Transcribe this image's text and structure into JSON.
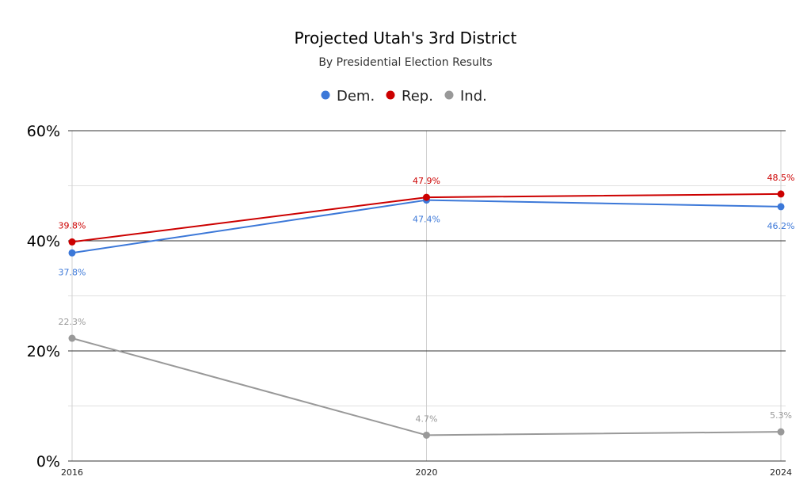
{
  "chart_data": {
    "type": "line",
    "title": "Projected Utah's 3rd District",
    "subtitle": "By Presidential Election Results",
    "xlabel": "",
    "ylabel": "",
    "categories": [
      "2016",
      "2020",
      "2024"
    ],
    "ylim": [
      0,
      60
    ],
    "y_ticks": [
      0,
      20,
      40,
      60
    ],
    "y_tick_labels": [
      "0%",
      "20%",
      "40%",
      "60%"
    ],
    "y_minor_ticks": [
      10,
      30,
      50
    ],
    "grid": true,
    "legend_placement": "top",
    "series": [
      {
        "name": "Dem.",
        "color": "#3c78d8",
        "values": [
          37.8,
          47.4,
          46.2
        ],
        "labels": [
          "37.8%",
          "47.4%",
          "46.2%"
        ]
      },
      {
        "name": "Rep.",
        "color": "#cc0000",
        "values": [
          39.8,
          47.9,
          48.5
        ],
        "labels": [
          "39.8%",
          "47.9%",
          "48.5%"
        ]
      },
      {
        "name": "Ind.",
        "color": "#999999",
        "values": [
          22.3,
          4.7,
          5.3
        ],
        "labels": [
          "22.3%",
          "4.7%",
          "5.3%"
        ]
      }
    ]
  }
}
